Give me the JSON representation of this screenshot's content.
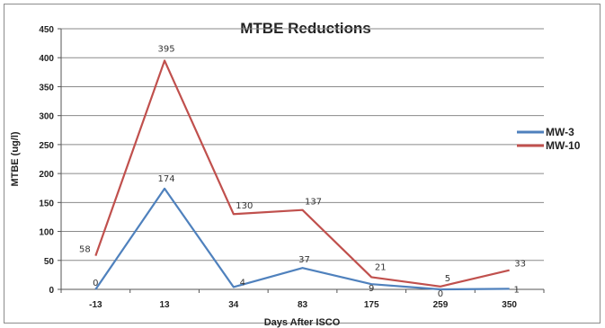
{
  "chart_data": {
    "type": "line",
    "title": "MTBE Reductions",
    "xlabel": "Days After ISCO",
    "ylabel": "MTBE (ug/l)",
    "categories": [
      "-13",
      "13",
      "34",
      "83",
      "175",
      "259",
      "350"
    ],
    "ylim": [
      0,
      450
    ],
    "yticks": [
      0,
      50,
      100,
      150,
      200,
      250,
      300,
      350,
      400,
      450
    ],
    "grid": true,
    "legend_position": "right",
    "series": [
      {
        "name": "MW-3",
        "color": "#4f81bd",
        "values": [
          0,
          174,
          4,
          37,
          9,
          0,
          1
        ],
        "labels": [
          "0",
          "174",
          "4",
          "37",
          "9",
          "0",
          "1"
        ]
      },
      {
        "name": "MW-10",
        "color": "#c0504d",
        "values": [
          58,
          395,
          130,
          137,
          21,
          5,
          33
        ],
        "labels": [
          "58",
          "395",
          "130",
          "137",
          "21",
          "5",
          "33"
        ]
      }
    ]
  }
}
